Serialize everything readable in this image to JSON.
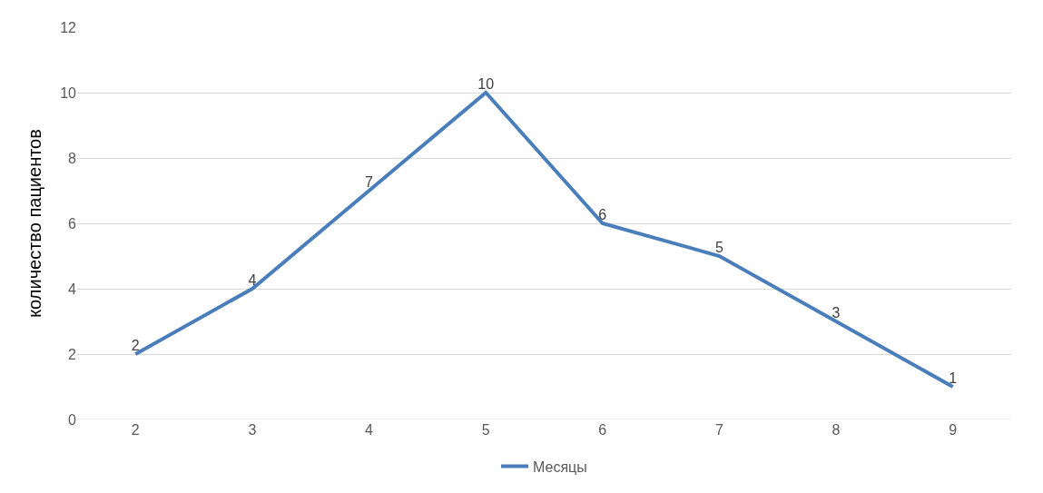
{
  "chart_data": {
    "type": "line",
    "ylabel": "количество пациентов",
    "categories": [
      "2",
      "3",
      "4",
      "5",
      "6",
      "7",
      "8",
      "9"
    ],
    "series": [
      {
        "name": "Месяцы",
        "color": "#4a7ebb",
        "values": [
          2,
          4,
          7,
          10,
          6,
          5,
          3,
          1
        ]
      }
    ],
    "ylim": [
      0,
      12
    ],
    "yticks": [
      0,
      2,
      4,
      6,
      8,
      10,
      12
    ],
    "grid": "y",
    "legend": "bottom",
    "data_labels": true,
    "marker": "none",
    "line_style": "solid"
  }
}
